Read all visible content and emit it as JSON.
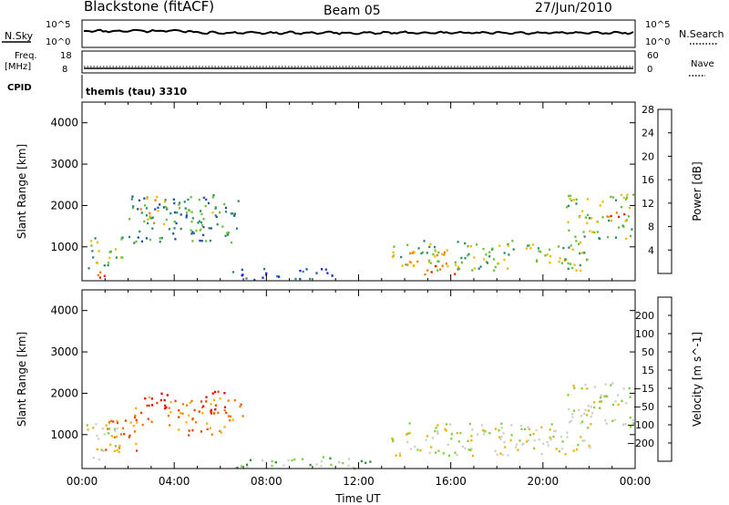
{
  "header": {
    "station": "Blackstone (fitACF)",
    "beam": "Beam 05",
    "date": "27/Jun/2010"
  },
  "aux": {
    "nsky_label": "N.Sky",
    "nsky_top": "10^5",
    "nsky_bottom": "10^0",
    "nsearch_label": "N.Search",
    "nsearch_top": "10^5",
    "nsearch_bottom": "10^0",
    "freq_label": "Freq.",
    "freq_unit": "[MHz]",
    "freq_top": "18",
    "freq_bottom": "8",
    "nave_label": "Nave",
    "nave_top": "60",
    "nave_bottom": "0",
    "cpid_label": "CPID",
    "cpid_text": "themis (tau) 3310"
  },
  "chart_data": [
    {
      "type": "heatmap",
      "panel": "power",
      "ylabel": "Slant Range [km]",
      "ylim": [
        180,
        4500
      ],
      "yticks": [
        1000,
        2000,
        3000,
        4000
      ],
      "colorbar": {
        "label": "Power [dB]",
        "ticks": [
          "4",
          "8",
          "12",
          "16",
          "20",
          "24",
          "28"
        ],
        "colors": [
          "#1a1aff",
          "#1f4fa8",
          "#2e8a6f",
          "#66c23a",
          "#f2b800",
          "#f08000",
          "#e81c00"
        ]
      },
      "regions": [
        {
          "t": [
            0.2,
            1.8
          ],
          "r": [
            500,
            1300
          ],
          "level": 3
        },
        {
          "t": [
            0.4,
            1.0
          ],
          "r": [
            250,
            650
          ],
          "level": 6
        },
        {
          "t": [
            2.0,
            6.8
          ],
          "r": [
            1100,
            2300
          ],
          "level": 2
        },
        {
          "t": [
            2.5,
            3.6
          ],
          "r": [
            1550,
            2250
          ],
          "level": 4
        },
        {
          "t": [
            4.6,
            5.8
          ],
          "r": [
            1400,
            2000
          ],
          "level": 3
        },
        {
          "t": [
            6.5,
            11.0
          ],
          "r": [
            200,
            500
          ],
          "level": 1
        },
        {
          "t": [
            13.4,
            22.0
          ],
          "r": [
            450,
            1200
          ],
          "level": 3
        },
        {
          "t": [
            14.0,
            16.2
          ],
          "r": [
            350,
            900
          ],
          "level": 5
        },
        {
          "t": [
            21.0,
            23.9
          ],
          "r": [
            1200,
            2300
          ],
          "level": 3
        },
        {
          "t": [
            22.6,
            23.6
          ],
          "r": [
            1500,
            1900
          ],
          "level": 5
        }
      ]
    },
    {
      "type": "heatmap",
      "panel": "velocity",
      "ylabel": "Slant Range [km]",
      "xlabel": "Time UT",
      "ylim": [
        180,
        4500
      ],
      "yticks": [
        1000,
        2000,
        3000,
        4000
      ],
      "xticks": [
        "00:00",
        "04:00",
        "08:00",
        "12:00",
        "16:00",
        "20:00",
        "00:00"
      ],
      "colorbar": {
        "label": "Velocity [m s^-1]",
        "ticks": [
          "200",
          "100",
          "50",
          "15",
          "−15",
          "−50",
          "−100",
          "−200"
        ],
        "colors": [
          "#1f3fbf",
          "#2b6e9e",
          "#2f8f3a",
          "#7fcf3f",
          "#cfcfc8",
          "#f2b000",
          "#f07800",
          "#f04000",
          "#e60000"
        ]
      },
      "regions": [
        {
          "t": [
            0.1,
            1.6
          ],
          "r": [
            400,
            1300
          ],
          "level": 4
        },
        {
          "t": [
            0.9,
            2.6
          ],
          "r": [
            600,
            1400
          ],
          "level": 6
        },
        {
          "t": [
            2.2,
            3.0
          ],
          "r": [
            1200,
            2000
          ],
          "level": 6
        },
        {
          "t": [
            2.6,
            3.7
          ],
          "r": [
            1650,
            2200
          ],
          "level": 8
        },
        {
          "t": [
            3.7,
            7.0
          ],
          "r": [
            1000,
            1900
          ],
          "level": 6
        },
        {
          "t": [
            5.0,
            6.2
          ],
          "r": [
            1500,
            2100
          ],
          "level": 8
        },
        {
          "t": [
            6.5,
            12.5
          ],
          "r": [
            200,
            500
          ],
          "level": 3
        },
        {
          "t": [
            13.4,
            22.2
          ],
          "r": [
            500,
            1300
          ],
          "level": 4
        },
        {
          "t": [
            21.0,
            23.9
          ],
          "r": [
            1200,
            2300
          ],
          "level": 4
        }
      ]
    }
  ]
}
